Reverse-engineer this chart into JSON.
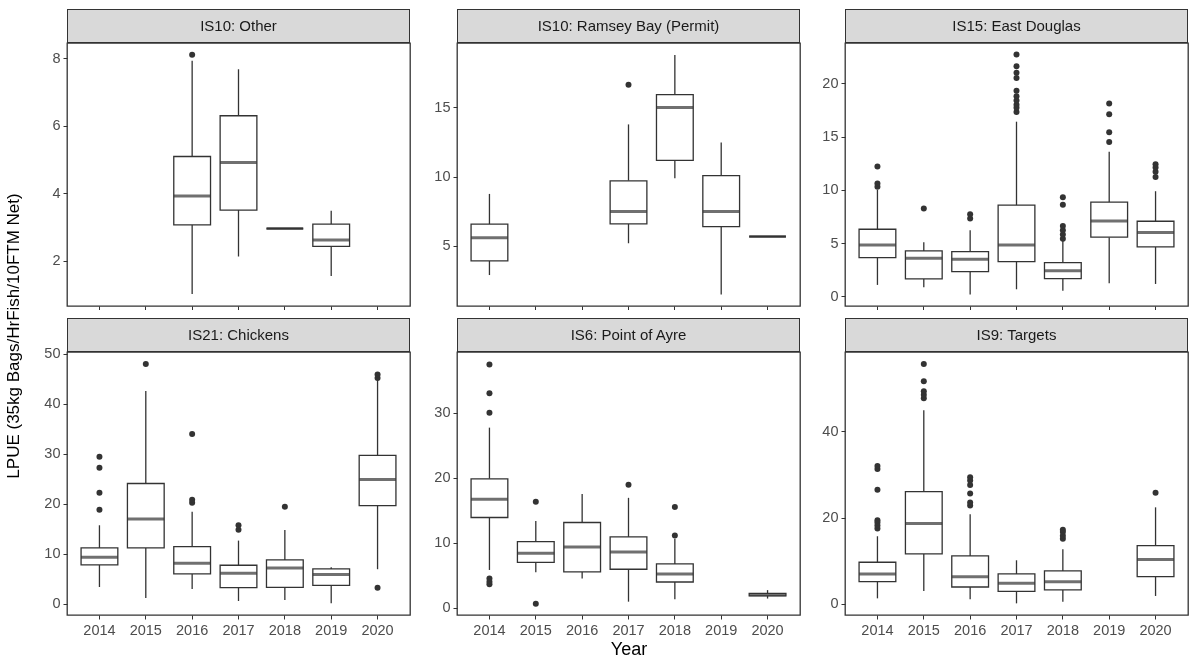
{
  "chart_data": [
    {
      "type": "box",
      "title": "IS10: Other",
      "categories": [
        "2014",
        "2015",
        "2016",
        "2017",
        "2018",
        "2019",
        "2020"
      ],
      "ylim": [
        0.65,
        8.46
      ],
      "yticks": [
        2,
        4,
        6,
        8
      ],
      "grid": false,
      "tick_labels": "y",
      "boxes": [
        null,
        null,
        {
          "low": 1.01,
          "q1": 3.06,
          "median": 3.92,
          "q3": 5.09,
          "high": 7.93,
          "outliers": [
            8.11
          ]
        },
        {
          "low": 2.12,
          "q1": 3.5,
          "median": 4.91,
          "q3": 6.3,
          "high": 7.68
        },
        {
          "low": 2.95,
          "q1": 2.95,
          "median": 2.95,
          "q3": 2.95,
          "high": 2.95
        },
        {
          "low": 1.54,
          "q1": 2.42,
          "median": 2.61,
          "q3": 3.08,
          "high": 3.48
        },
        null
      ]
    },
    {
      "type": "box",
      "title": "IS10: Ramsey Bay (Permit)",
      "categories": [
        "2014",
        "2015",
        "2016",
        "2017",
        "2018",
        "2019",
        "2020"
      ],
      "ylim": [
        0.63,
        19.66
      ],
      "yticks": [
        5,
        10,
        15
      ],
      "grid": false,
      "tick_labels": "y",
      "boxes": [
        {
          "low": 2.87,
          "q1": 3.89,
          "median": 5.56,
          "q3": 6.55,
          "high": 8.74
        },
        null,
        null,
        {
          "low": 5.17,
          "q1": 6.57,
          "median": 7.46,
          "q3": 9.69,
          "high": 13.77,
          "outliers": [
            16.64
          ]
        },
        {
          "low": 9.88,
          "q1": 11.16,
          "median": 15.0,
          "q3": 15.92,
          "high": 18.79
        },
        {
          "low": 1.47,
          "q1": 6.38,
          "median": 7.46,
          "q3": 10.07,
          "high": 12.46
        },
        {
          "low": 5.65,
          "q1": 5.65,
          "median": 5.65,
          "q3": 5.65,
          "high": 5.65
        }
      ]
    },
    {
      "type": "box",
      "title": "IS15: East Douglas",
      "categories": [
        "2014",
        "2015",
        "2016",
        "2017",
        "2018",
        "2019",
        "2020"
      ],
      "ylim": [
        -0.91,
        23.79
      ],
      "yticks": [
        0,
        5,
        10,
        15,
        20
      ],
      "grid": false,
      "tick_labels": "y",
      "boxes": [
        {
          "low": 1.07,
          "q1": 3.64,
          "median": 4.83,
          "q3": 6.3,
          "high": 10.0,
          "outliers": [
            10.3,
            10.6,
            12.2
          ]
        },
        {
          "low": 0.85,
          "q1": 1.63,
          "median": 3.57,
          "q3": 4.26,
          "high": 5.08,
          "outliers": [
            8.24
          ]
        },
        {
          "low": 0.16,
          "q1": 2.32,
          "median": 3.48,
          "q3": 4.2,
          "high": 6.2,
          "outliers": [
            7.3,
            7.7
          ]
        },
        {
          "low": 0.66,
          "q1": 3.26,
          "median": 4.83,
          "q3": 8.56,
          "high": 16.4,
          "outliers": [
            17.3,
            17.7,
            18.0,
            18.4,
            18.8,
            19.3,
            20.5,
            21.0,
            21.6,
            22.7
          ]
        },
        {
          "low": 0.53,
          "q1": 1.66,
          "median": 2.41,
          "q3": 3.17,
          "high": 5.2,
          "outliers": [
            5.4,
            5.8,
            6.2,
            6.6,
            8.6,
            9.3
          ]
        },
        {
          "low": 1.22,
          "q1": 5.55,
          "median": 7.08,
          "q3": 8.84,
          "high": 13.57,
          "outliers": [
            14.5,
            15.4,
            17.1,
            18.1
          ]
        },
        {
          "low": 1.16,
          "q1": 4.64,
          "median": 5.99,
          "q3": 7.05,
          "high": 9.87,
          "outliers": [
            11.2,
            11.7,
            12.1,
            12.4
          ]
        }
      ]
    },
    {
      "type": "box",
      "title": "IS21: Chickens",
      "ylabel": "LPUE (35kg Bags/HrFish/10FTM Net)",
      "categories": [
        "2014",
        "2015",
        "2016",
        "2017",
        "2018",
        "2019",
        "2020"
      ],
      "ylim": [
        -2.27,
        50.4
      ],
      "yticks": [
        0,
        10,
        20,
        30,
        40,
        50
      ],
      "grid": false,
      "boxes": [
        {
          "low": 3.34,
          "q1": 7.75,
          "median": 9.29,
          "q3": 11.16,
          "high": 15.7,
          "outliers": [
            18.8,
            22.2,
            27.2,
            29.4
          ]
        },
        {
          "low": 1.14,
          "q1": 11.16,
          "median": 16.98,
          "q3": 24.06,
          "high": 42.6,
          "outliers": [
            48.0
          ]
        },
        {
          "low": 2.94,
          "q1": 5.95,
          "median": 8.09,
          "q3": 11.43,
          "high": 18.4,
          "outliers": [
            20.2,
            20.8,
            34.0
          ]
        },
        {
          "low": 0.53,
          "q1": 3.21,
          "median": 6.08,
          "q3": 7.69,
          "high": 12.63,
          "outliers": [
            14.8,
            15.7
          ]
        },
        {
          "low": 0.74,
          "q1": 3.28,
          "median": 7.15,
          "q3": 8.76,
          "high": 14.77,
          "outliers": [
            19.4
          ]
        },
        {
          "low": 0.07,
          "q1": 3.68,
          "median": 5.82,
          "q3": 6.95,
          "high": 7.29
        },
        {
          "low": 6.9,
          "q1": 19.65,
          "median": 24.87,
          "q3": 29.7,
          "high": 44.8,
          "outliers": [
            3.2,
            45.2,
            45.9
          ]
        }
      ]
    },
    {
      "type": "box",
      "title": "IS6: Point of Ayre",
      "xlabel": "Year",
      "categories": [
        "2014",
        "2015",
        "2016",
        "2017",
        "2018",
        "2019",
        "2020"
      ],
      "ylim": [
        -1.13,
        39.34
      ],
      "yticks": [
        0,
        10,
        20,
        30
      ],
      "grid": false,
      "boxes": [
        {
          "low": 5.8,
          "q1": 13.87,
          "median": 16.69,
          "q3": 19.83,
          "high": 27.7,
          "outliers": [
            3.6,
            4.0,
            4.5,
            30.0,
            33.0,
            37.4
          ]
        },
        {
          "low": 5.44,
          "q1": 6.98,
          "median": 8.37,
          "q3": 10.17,
          "high": 13.35,
          "outliers": [
            0.6,
            16.3
          ]
        },
        {
          "low": 4.47,
          "q1": 5.5,
          "median": 9.35,
          "q3": 13.1,
          "high": 17.5
        },
        {
          "low": 0.92,
          "q1": 5.91,
          "median": 8.58,
          "q3": 10.89,
          "high": 16.9,
          "outliers": [
            18.9
          ]
        },
        {
          "low": 1.28,
          "q1": 3.95,
          "median": 5.19,
          "q3": 6.73,
          "high": 10.6,
          "outliers": [
            11.1,
            15.5
          ]
        },
        null,
        {
          "low": 1.4,
          "q1": 1.8,
          "median": 2.0,
          "q3": 2.2,
          "high": 2.7
        }
      ]
    },
    {
      "type": "box",
      "title": "IS9: Targets",
      "categories": [
        "2014",
        "2015",
        "2016",
        "2017",
        "2018",
        "2019",
        "2020"
      ],
      "ylim": [
        -2.55,
        58.4
      ],
      "yticks": [
        0,
        20,
        40
      ],
      "grid": false,
      "boxes": [
        {
          "low": 1.31,
          "q1": 5.18,
          "median": 6.96,
          "q3": 9.67,
          "high": 15.7,
          "outliers": [
            17.5,
            18.2,
            18.9,
            19.4,
            26.5,
            31.3,
            32.0
          ]
        },
        {
          "low": 3.02,
          "q1": 11.6,
          "median": 18.64,
          "q3": 26.06,
          "high": 44.9,
          "outliers": [
            47.7,
            48.5,
            49.3,
            51.6,
            55.6
          ]
        },
        {
          "low": 1.08,
          "q1": 3.94,
          "median": 6.34,
          "q3": 11.14,
          "high": 20.8,
          "outliers": [
            22.8,
            23.5,
            25.6,
            27.6,
            28.6,
            29.4
          ]
        },
        {
          "low": 0.15,
          "q1": 2.94,
          "median": 4.8,
          "q3": 6.96,
          "high": 10.13
        },
        {
          "low": 0.54,
          "q1": 3.25,
          "median": 5.18,
          "q3": 7.66,
          "high": 12.68,
          "outliers": [
            15.1,
            15.8,
            16.7,
            17.2
          ]
        },
        null,
        {
          "low": 1.86,
          "q1": 6.34,
          "median": 10.29,
          "q3": 13.53,
          "high": 22.4,
          "outliers": [
            25.8
          ]
        }
      ]
    }
  ]
}
